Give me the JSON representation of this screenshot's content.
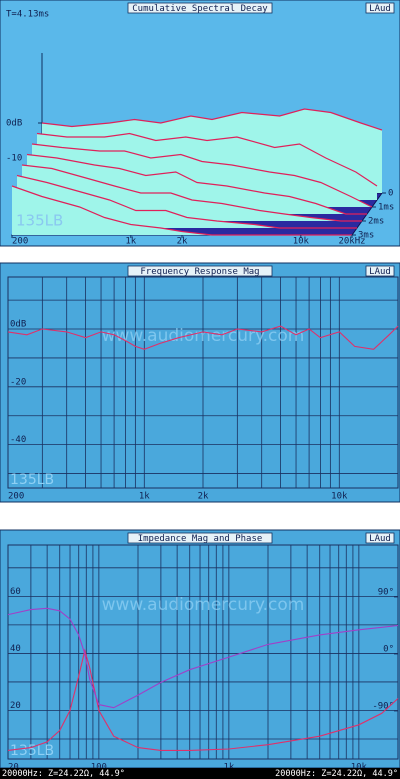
{
  "chart_data": [
    {
      "type": "waterfall",
      "title": "Cumulative Spectral Decay",
      "brand": "LAud",
      "time_label": "T=4.13ms",
      "model_label": "135LB",
      "x": [
        200,
        300,
        500,
        700,
        1000,
        1500,
        2000,
        3000,
        5000,
        7000,
        10000,
        15000,
        20000
      ],
      "slices": [
        {
          "time": 0,
          "values": [
            0,
            -1,
            0,
            1,
            0,
            2,
            1,
            3,
            2,
            4,
            3,
            0,
            -2
          ]
        },
        {
          "time": 0.5,
          "values": [
            -1,
            -2,
            -2,
            -1,
            -3,
            -2,
            -3,
            -2,
            -5,
            -4,
            -8,
            -12,
            -16
          ]
        },
        {
          "time": 1,
          "values": [
            -2,
            -3,
            -4,
            -4,
            -6,
            -5,
            -7,
            -8,
            -10,
            -11,
            -13,
            -17,
            -20
          ]
        },
        {
          "time": 1.5,
          "values": [
            -3,
            -4,
            -6,
            -7,
            -9,
            -8,
            -11,
            -12,
            -14,
            -15,
            -17,
            -20,
            -20
          ]
        },
        {
          "time": 2,
          "values": [
            -4,
            -5,
            -8,
            -10,
            -12,
            -12,
            -14,
            -15,
            -17,
            -18,
            -19,
            -20,
            -20
          ]
        },
        {
          "time": 2.5,
          "values": [
            -5,
            -7,
            -10,
            -12,
            -15,
            -15,
            -17,
            -18,
            -19,
            -20,
            -20,
            -20,
            -20
          ]
        },
        {
          "time": 3,
          "values": [
            -6,
            -9,
            -12,
            -15,
            -17,
            -18,
            -19,
            -20,
            -20,
            -20,
            -20,
            -20,
            -20
          ]
        }
      ],
      "color": "#e0205a",
      "fill": "#9ff5ea",
      "floor_color": "#2a2aa0",
      "background": "#5ab8ea",
      "xlim": [
        200,
        20000
      ],
      "log_x": true,
      "xticks": [
        200,
        {
          "value": 1000,
          "label": "1k"
        },
        {
          "value": 2000,
          "label": "2k"
        },
        {
          "value": 10000,
          "label": "10k"
        },
        {
          "value": 20000,
          "label": "20kHz"
        }
      ],
      "ylim": [
        -20,
        20
      ],
      "yticks": [
        {
          "value": 0,
          "label": "0dB"
        },
        -10
      ],
      "tlim": [
        0,
        3
      ],
      "tticks": [
        0,
        {
          "value": 1,
          "label": "1ms"
        },
        {
          "value": 2,
          "label": "2ms"
        },
        {
          "value": 3,
          "label": "3ms"
        }
      ]
    },
    {
      "type": "line",
      "title": "Frequency Response Mag",
      "brand": "LAud",
      "watermark": "www.audiomercury.com",
      "model_label": "135LB",
      "x": [
        200,
        250,
        300,
        400,
        500,
        600,
        700,
        800,
        900,
        1000,
        1200,
        1500,
        2000,
        2500,
        3000,
        4000,
        5000,
        6000,
        7000,
        8000,
        10000,
        12000,
        15000,
        18000,
        20000
      ],
      "series": [
        {
          "color": "#e0306a",
          "values": [
            -1,
            -2,
            0,
            -1,
            -3,
            -1,
            -2,
            -4,
            -6,
            -7,
            -5,
            -3,
            -1,
            -2,
            0,
            -1,
            1,
            -2,
            0,
            -3,
            -1,
            -6,
            -7,
            -2,
            1
          ]
        }
      ],
      "background": "#4aa8dc",
      "grid": true,
      "log_x": true,
      "xlim": [
        200,
        20000
      ],
      "xticks": [
        200,
        {
          "value": 1000,
          "label": "1k"
        },
        {
          "value": 2000,
          "label": "2k"
        },
        {
          "value": 10000,
          "label": "10k"
        }
      ],
      "xgrid": [
        300,
        400,
        500,
        600,
        700,
        800,
        900,
        3000,
        4000,
        5000,
        6000,
        7000,
        8000,
        9000,
        20000
      ],
      "ylim": [
        -55,
        18
      ],
      "yticks": [
        {
          "value": 0,
          "label": "0dB"
        },
        -20,
        -40
      ],
      "ygrid": [
        10,
        -10,
        -30,
        -50
      ]
    },
    {
      "type": "line",
      "title": "Impedance Mag and Phase",
      "brand": "LAud",
      "watermark": "www.audiomercury.com",
      "model_label": "135LB",
      "x": [
        20,
        30,
        40,
        50,
        60,
        70,
        78,
        85,
        100,
        130,
        200,
        300,
        500,
        1000,
        2000,
        5000,
        10000,
        15000,
        20000
      ],
      "series": [
        {
          "color": "#e0306a",
          "values": [
            6,
            7,
            9,
            13,
            20,
            32,
            41,
            35,
            20,
            11,
            7,
            6,
            6,
            6.5,
            8,
            11,
            15,
            19,
            24.22
          ]
        },
        {
          "color": "#a040c8",
          "axis": "y2",
          "values": [
            62,
            70,
            72,
            68,
            55,
            30,
            0,
            -40,
            -80,
            -85,
            -65,
            -45,
            -25,
            -5,
            15,
            30,
            38,
            42,
            44.9
          ]
        }
      ],
      "background": "#4aa8dc",
      "grid": true,
      "log_x": true,
      "xlim": [
        20,
        20000
      ],
      "xticks": [
        20,
        100,
        {
          "value": 1000,
          "label": "1k"
        },
        {
          "value": 10000,
          "label": "10k"
        }
      ],
      "xgrid": [
        30,
        40,
        50,
        60,
        70,
        80,
        90,
        200,
        300,
        400,
        500,
        600,
        700,
        800,
        900,
        2000,
        3000,
        4000,
        5000,
        6000,
        7000,
        8000,
        9000,
        20000
      ],
      "ylim": [
        3,
        78
      ],
      "yticks": [
        60,
        40,
        20
      ],
      "ygrid": [
        70,
        50,
        30,
        10
      ],
      "y2lim": [
        -166,
        172
      ],
      "y2ticks": [
        {
          "value": 90,
          "label": "90°"
        },
        {
          "value": 0,
          "label": "0°"
        },
        {
          "value": -90,
          "label": "-90°"
        }
      ],
      "status": [
        "20000Hz: Z=24.22Ω, 44.9°",
        "20000Hz: Z=24.22Ω, 44.9°"
      ]
    }
  ]
}
